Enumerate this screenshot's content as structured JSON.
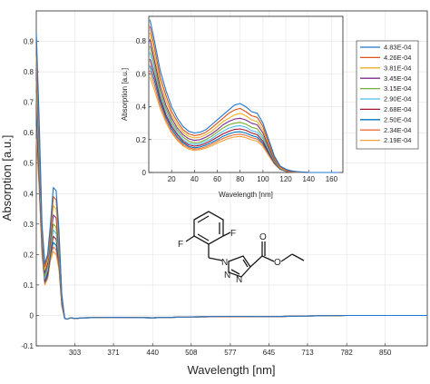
{
  "chart_data": [
    {
      "type": "line",
      "xlabel": "Wavelength [nm]",
      "ylabel": "Absorption [a.u.]",
      "xlim": [
        235,
        924
      ],
      "ylim": [
        -0.1,
        1.0
      ],
      "x_tick_labels": [
        "303",
        "371",
        "440",
        "508",
        "577",
        "645",
        "713",
        "782",
        "850"
      ],
      "x_ticks": [
        303,
        371,
        440,
        508,
        577,
        645,
        713,
        782,
        850
      ],
      "y_tick_labels": [
        "-0.1",
        "0",
        "0.1",
        "0.2",
        "0.3",
        "0.4",
        "0.5",
        "0.6",
        "0.7",
        "0.8",
        "0.9"
      ],
      "y_ticks": [
        -0.1,
        0,
        0.1,
        0.2,
        0.3,
        0.4,
        0.5,
        0.6,
        0.7,
        0.8,
        0.9
      ],
      "grid": true,
      "x": [
        235,
        240,
        245,
        250,
        255,
        260,
        265,
        270,
        275,
        280,
        285,
        290,
        295,
        303,
        320,
        371,
        440,
        508,
        577,
        645,
        713,
        782,
        850,
        924
      ],
      "series": [
        {
          "color": "#1f77d0",
          "values": [
            0.93,
            0.65,
            0.3,
            0.17,
            0.2,
            0.3,
            0.42,
            0.41,
            0.28,
            0.07,
            -0.01,
            -0.012,
            -0.008,
            -0.01,
            -0.008,
            -0.006,
            -0.008,
            -0.005,
            -0.003,
            -0.004,
            -0.002,
            0.0,
            0.0,
            0.0
          ]
        },
        {
          "color": "#d95319",
          "values": [
            0.89,
            0.62,
            0.28,
            0.16,
            0.19,
            0.28,
            0.39,
            0.38,
            0.26,
            0.065,
            -0.01,
            -0.012,
            -0.008,
            -0.01,
            -0.008,
            -0.006,
            -0.008,
            -0.005,
            -0.004,
            -0.004,
            -0.002,
            0.0,
            0.0,
            0.0
          ]
        },
        {
          "color": "#edb120",
          "values": [
            0.85,
            0.59,
            0.27,
            0.15,
            0.18,
            0.27,
            0.36,
            0.35,
            0.24,
            0.06,
            -0.01,
            -0.012,
            -0.008,
            -0.01,
            -0.008,
            -0.006,
            -0.008,
            -0.005,
            -0.004,
            -0.004,
            -0.002,
            0.0,
            0.0,
            0.0
          ]
        },
        {
          "color": "#7e2f8e",
          "values": [
            0.81,
            0.56,
            0.26,
            0.14,
            0.17,
            0.25,
            0.33,
            0.32,
            0.22,
            0.055,
            -0.01,
            -0.012,
            -0.008,
            -0.01,
            -0.008,
            -0.006,
            -0.008,
            -0.005,
            -0.004,
            -0.004,
            -0.002,
            0.0,
            0.0,
            0.0
          ]
        },
        {
          "color": "#77ac30",
          "values": [
            0.77,
            0.53,
            0.25,
            0.13,
            0.16,
            0.23,
            0.3,
            0.29,
            0.2,
            0.05,
            -0.01,
            -0.012,
            -0.008,
            -0.01,
            -0.008,
            -0.006,
            -0.008,
            -0.005,
            -0.004,
            -0.004,
            -0.002,
            0.0,
            0.0,
            0.0
          ]
        },
        {
          "color": "#4dbeee",
          "values": [
            0.73,
            0.5,
            0.24,
            0.12,
            0.15,
            0.22,
            0.28,
            0.27,
            0.19,
            0.045,
            -0.01,
            -0.012,
            -0.008,
            -0.01,
            -0.008,
            -0.006,
            -0.008,
            -0.005,
            -0.004,
            -0.004,
            -0.002,
            0.0,
            0.0,
            0.0
          ]
        },
        {
          "color": "#a2142f",
          "values": [
            0.69,
            0.48,
            0.23,
            0.115,
            0.14,
            0.21,
            0.26,
            0.25,
            0.18,
            0.04,
            -0.01,
            -0.012,
            -0.008,
            -0.01,
            -0.008,
            -0.006,
            -0.008,
            -0.005,
            -0.004,
            -0.004,
            -0.002,
            0.0,
            0.0,
            0.0
          ]
        },
        {
          "color": "#0072bd",
          "values": [
            0.65,
            0.46,
            0.22,
            0.11,
            0.13,
            0.2,
            0.24,
            0.23,
            0.17,
            0.04,
            -0.01,
            -0.012,
            -0.008,
            -0.01,
            -0.008,
            -0.006,
            -0.008,
            -0.005,
            -0.004,
            -0.004,
            -0.002,
            0.0,
            0.0,
            0.0
          ]
        },
        {
          "color": "#e8703a",
          "values": [
            0.62,
            0.44,
            0.21,
            0.105,
            0.125,
            0.19,
            0.225,
            0.215,
            0.16,
            0.035,
            -0.01,
            -0.012,
            -0.008,
            -0.01,
            -0.008,
            -0.006,
            -0.008,
            -0.005,
            -0.004,
            -0.004,
            -0.002,
            0.0,
            0.0,
            0.0
          ]
        },
        {
          "color": "#f2a33a",
          "values": [
            0.58,
            0.42,
            0.2,
            0.1,
            0.12,
            0.18,
            0.21,
            0.2,
            0.15,
            0.03,
            -0.01,
            -0.012,
            -0.008,
            -0.01,
            -0.008,
            -0.006,
            -0.008,
            -0.005,
            -0.004,
            -0.004,
            -0.002,
            0.0,
            0.0,
            0.0
          ]
        }
      ]
    },
    {
      "type": "line",
      "xlabel": "Wavelength [nm]",
      "ylabel": "Absorption [a.u.]",
      "xlim": [
        0,
        170
      ],
      "ylim": [
        0,
        0.95
      ],
      "x_tick_labels": [
        "20",
        "40",
        "60",
        "80",
        "100",
        "120",
        "140",
        "160"
      ],
      "x_ticks": [
        20,
        40,
        60,
        80,
        100,
        120,
        140,
        160
      ],
      "y_tick_labels": [
        "0",
        "0.2",
        "0.4",
        "0.6",
        "0.8"
      ],
      "y_ticks": [
        0,
        0.2,
        0.4,
        0.6,
        0.8
      ],
      "grid": true,
      "legend": {
        "position": "right-outside",
        "entries": [
          "4.83E-04",
          "4.26E-04",
          "3.81E-04",
          "3.45E-04",
          "3.15E-04",
          "2.90E-04",
          "2.68E-04",
          "2.50E-04",
          "2.34E-04",
          "2.19E-04"
        ]
      },
      "x": [
        1,
        5,
        10,
        15,
        20,
        25,
        30,
        35,
        40,
        45,
        50,
        55,
        60,
        65,
        70,
        75,
        80,
        85,
        90,
        95,
        100,
        105,
        110,
        115,
        120,
        125,
        130,
        140,
        150,
        160,
        167
      ],
      "series": [
        {
          "name": "4.83E-04",
          "color": "#1f77d0",
          "values": [
            0.93,
            0.8,
            0.62,
            0.5,
            0.4,
            0.33,
            0.28,
            0.25,
            0.24,
            0.245,
            0.26,
            0.29,
            0.32,
            0.35,
            0.38,
            0.41,
            0.42,
            0.4,
            0.37,
            0.36,
            0.3,
            0.2,
            0.1,
            0.04,
            0.02,
            0.01,
            0.005,
            0.0,
            0.0,
            0.0,
            0.0
          ]
        },
        {
          "name": "4.26E-04",
          "color": "#d95319",
          "values": [
            0.89,
            0.76,
            0.58,
            0.47,
            0.37,
            0.31,
            0.26,
            0.235,
            0.225,
            0.23,
            0.245,
            0.27,
            0.3,
            0.33,
            0.36,
            0.38,
            0.39,
            0.37,
            0.345,
            0.335,
            0.28,
            0.18,
            0.09,
            0.035,
            0.015,
            0.008,
            0.004,
            0.0,
            0.0,
            0.0,
            0.0
          ]
        },
        {
          "name": "3.81E-04",
          "color": "#edb120",
          "values": [
            0.85,
            0.72,
            0.55,
            0.44,
            0.35,
            0.29,
            0.245,
            0.22,
            0.21,
            0.215,
            0.23,
            0.25,
            0.28,
            0.31,
            0.33,
            0.35,
            0.36,
            0.345,
            0.32,
            0.31,
            0.26,
            0.17,
            0.085,
            0.03,
            0.013,
            0.007,
            0.003,
            0.0,
            0.0,
            0.0,
            0.0
          ]
        },
        {
          "name": "3.45E-04",
          "color": "#7e2f8e",
          "values": [
            0.81,
            0.68,
            0.52,
            0.41,
            0.33,
            0.27,
            0.23,
            0.205,
            0.195,
            0.2,
            0.215,
            0.235,
            0.26,
            0.29,
            0.31,
            0.325,
            0.33,
            0.32,
            0.3,
            0.29,
            0.24,
            0.155,
            0.078,
            0.028,
            0.012,
            0.006,
            0.003,
            0.0,
            0.0,
            0.0,
            0.0
          ]
        },
        {
          "name": "3.15E-04",
          "color": "#77ac30",
          "values": [
            0.77,
            0.65,
            0.49,
            0.39,
            0.31,
            0.255,
            0.215,
            0.19,
            0.18,
            0.185,
            0.2,
            0.22,
            0.245,
            0.27,
            0.29,
            0.3,
            0.305,
            0.295,
            0.275,
            0.265,
            0.22,
            0.145,
            0.072,
            0.026,
            0.011,
            0.005,
            0.002,
            0.0,
            0.0,
            0.0,
            0.0
          ]
        },
        {
          "name": "2.90E-04",
          "color": "#4dbeee",
          "values": [
            0.73,
            0.62,
            0.47,
            0.37,
            0.295,
            0.24,
            0.2,
            0.178,
            0.17,
            0.175,
            0.19,
            0.205,
            0.23,
            0.25,
            0.27,
            0.28,
            0.285,
            0.275,
            0.255,
            0.245,
            0.205,
            0.135,
            0.067,
            0.024,
            0.01,
            0.005,
            0.002,
            0.0,
            0.0,
            0.0,
            0.0
          ]
        },
        {
          "name": "2.68E-04",
          "color": "#a2142f",
          "values": [
            0.69,
            0.59,
            0.45,
            0.35,
            0.28,
            0.23,
            0.19,
            0.168,
            0.16,
            0.165,
            0.178,
            0.195,
            0.215,
            0.235,
            0.25,
            0.262,
            0.265,
            0.257,
            0.24,
            0.23,
            0.19,
            0.125,
            0.062,
            0.022,
            0.009,
            0.004,
            0.002,
            0.0,
            0.0,
            0.0,
            0.0
          ]
        },
        {
          "name": "2.50E-04",
          "color": "#0072bd",
          "values": [
            0.65,
            0.56,
            0.43,
            0.335,
            0.265,
            0.215,
            0.18,
            0.158,
            0.15,
            0.155,
            0.167,
            0.182,
            0.2,
            0.22,
            0.235,
            0.245,
            0.248,
            0.24,
            0.225,
            0.215,
            0.178,
            0.117,
            0.058,
            0.02,
            0.008,
            0.004,
            0.002,
            0.0,
            0.0,
            0.0,
            0.0
          ]
        },
        {
          "name": "2.34E-04",
          "color": "#e8703a",
          "values": [
            0.62,
            0.53,
            0.41,
            0.32,
            0.25,
            0.205,
            0.17,
            0.15,
            0.142,
            0.146,
            0.157,
            0.172,
            0.19,
            0.207,
            0.22,
            0.23,
            0.233,
            0.226,
            0.212,
            0.203,
            0.168,
            0.11,
            0.054,
            0.019,
            0.008,
            0.004,
            0.002,
            0.0,
            0.0,
            0.0,
            0.0
          ]
        },
        {
          "name": "2.19E-04",
          "color": "#f2a33a",
          "values": [
            0.58,
            0.5,
            0.39,
            0.305,
            0.24,
            0.195,
            0.162,
            0.142,
            0.134,
            0.138,
            0.148,
            0.162,
            0.178,
            0.194,
            0.207,
            0.216,
            0.219,
            0.212,
            0.199,
            0.19,
            0.158,
            0.103,
            0.05,
            0.018,
            0.007,
            0.003,
            0.001,
            0.0,
            0.0,
            0.0,
            0.0
          ]
        }
      ]
    }
  ],
  "molecule": {
    "atom_labels": [
      "F",
      "F",
      "N",
      "N",
      "N",
      "O",
      "O"
    ]
  }
}
